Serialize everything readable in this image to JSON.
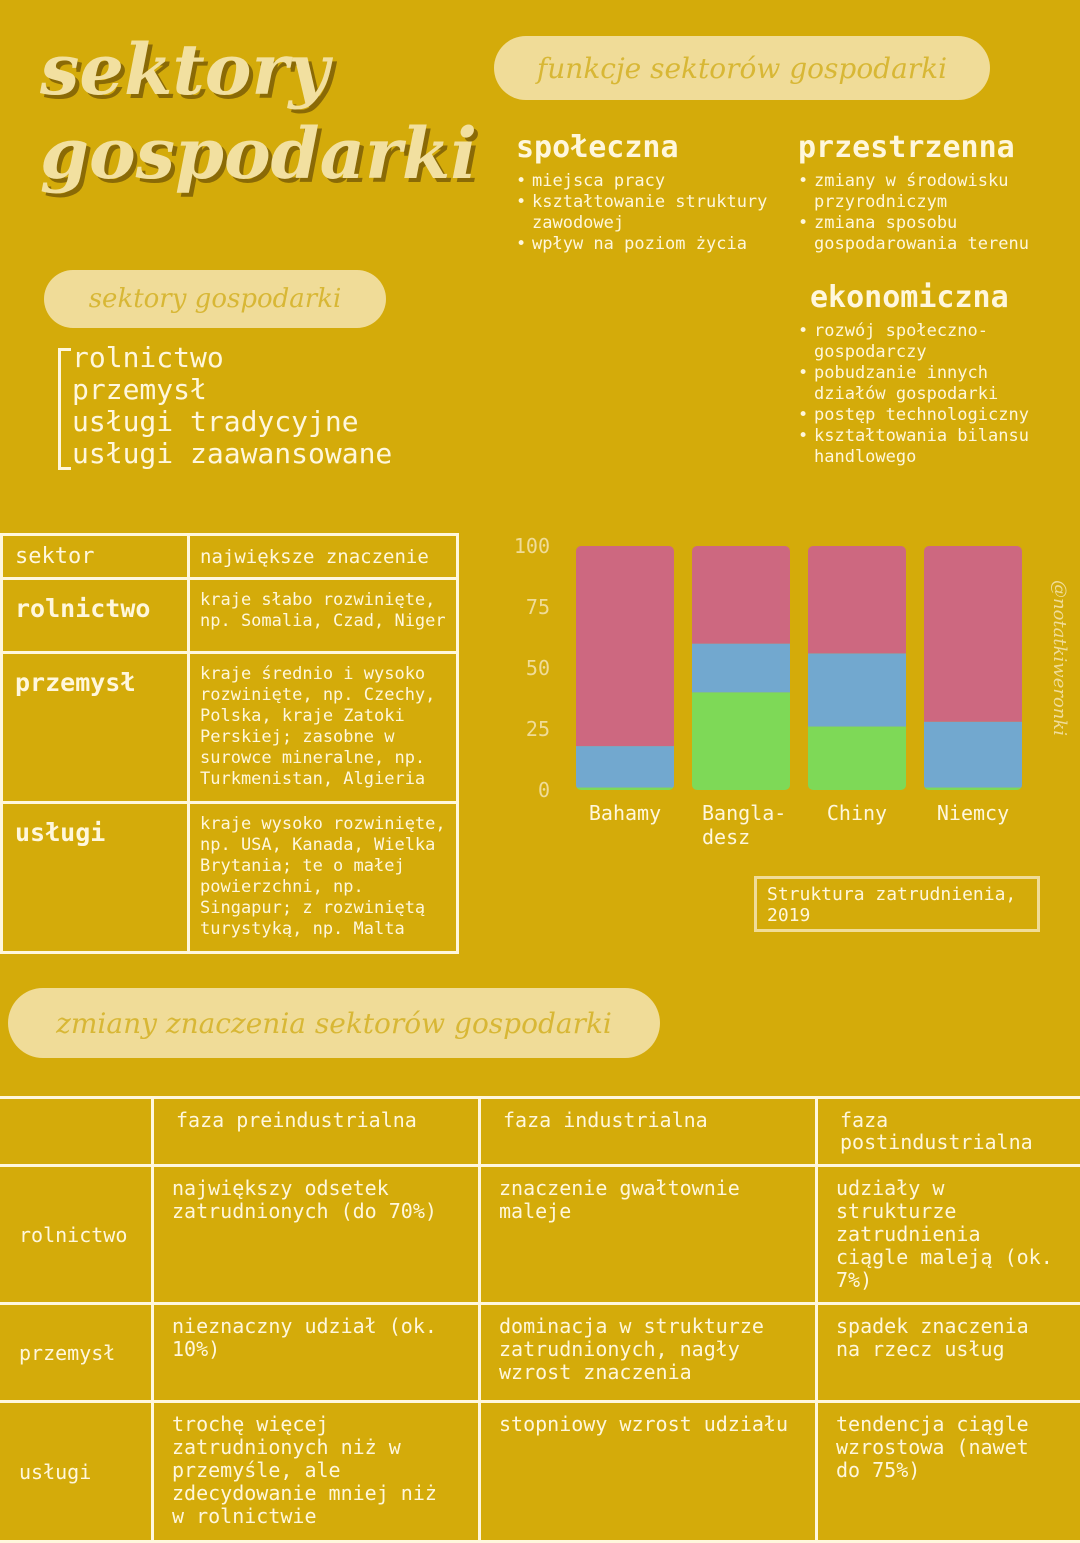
{
  "title": {
    "line1": "sektory",
    "line2": "gospodarki"
  },
  "functions": {
    "pill": "funkcje sektorów gospodarki",
    "spoleczna": {
      "heading": "społeczna",
      "items": [
        "miejsca pracy",
        "kształtowanie struktury zawodowej",
        "wpływ na poziom życia"
      ]
    },
    "przestrzenna": {
      "heading": "przestrzenna",
      "items": [
        "zmiany w środowisku przyrodniczym",
        "zmiana sposobu gospodarowania terenu"
      ]
    },
    "ekonomiczna": {
      "heading": "ekonomiczna",
      "items": [
        "rozwój społeczno-gospodarczy",
        "pobudzanie innych działów gospodarki",
        "postęp technologiczny",
        "kształtowania bilansu handlowego"
      ]
    }
  },
  "sectors": {
    "pill": "sektory gospodarki",
    "items": [
      "rolnictwo",
      "przemysł",
      "usługi tradycyjne",
      "usługi zaawansowane"
    ]
  },
  "importance_table": {
    "headers": [
      "sektor",
      "największe znaczenie"
    ],
    "rows": [
      {
        "sector": "rolnictwo",
        "text": "kraje słabo rozwinięte, np. Somalia, Czad, Niger"
      },
      {
        "sector": "przemysł",
        "text": "kraje średnio i wysoko rozwinięte, np. Czechy, Polska, kraje Zatoki Perskiej; zasobne w surowce mineralne, np. Turkmenistan, Algieria"
      },
      {
        "sector": "usługi",
        "text": "kraje wysoko rozwinięte, np. USA, Kanada, Wielka Brytania; te o małej powierzchni, np. Singapur; z rozwiniętą turystyką, np. Malta"
      }
    ]
  },
  "chart_data": {
    "type": "bar",
    "stacked": true,
    "title": "Struktura zatrudnienia, 2019",
    "categories": [
      "Bahamy",
      "Bangla-desz",
      "Chiny",
      "Niemcy"
    ],
    "category_lines": [
      [
        "Bahamy"
      ],
      [
        "Bangla-",
        "desz"
      ],
      [
        "Chiny"
      ],
      [
        "Niemcy"
      ]
    ],
    "yticks": [
      0,
      25,
      50,
      75,
      100
    ],
    "ylim": [
      0,
      100
    ],
    "series": [
      {
        "color": "#7ed957",
        "values": [
          1,
          40,
          26,
          1
        ]
      },
      {
        "color": "#72a8cf",
        "values": [
          17,
          20,
          30,
          27
        ]
      },
      {
        "color": "#cd6880",
        "values": [
          82,
          40,
          44,
          72
        ]
      }
    ],
    "watermark": "@notatkiweronki"
  },
  "changes": {
    "pill": "zmiany znaczenia sektorów gospodarki",
    "phases": [
      "faza preindustrialna",
      "faza industrialna",
      "faza postindustrialna"
    ],
    "rows": [
      {
        "sector": "rolnictwo",
        "cells": [
          "największy odsetek zatrudnionych (do 70%)",
          "znaczenie gwałtownie maleje",
          "udziały w strukturze zatrudnienia ciągle maleją (ok. 7%)"
        ]
      },
      {
        "sector": "przemysł",
        "cells": [
          "nieznaczny udział (ok. 10%)",
          "dominacja w strukturze zatrudnionych, nagły wzrost znaczenia",
          "spadek znaczenia na rzecz usług"
        ]
      },
      {
        "sector": "usługi",
        "cells": [
          "trochę więcej zatrudnionych niż w przemyśle, ale zdecydowanie mniej niż w rolnictwie",
          "stopniowy wzrost udziału",
          "tendencja ciągle wzrostowa (nawet do 75%)"
        ]
      }
    ]
  }
}
